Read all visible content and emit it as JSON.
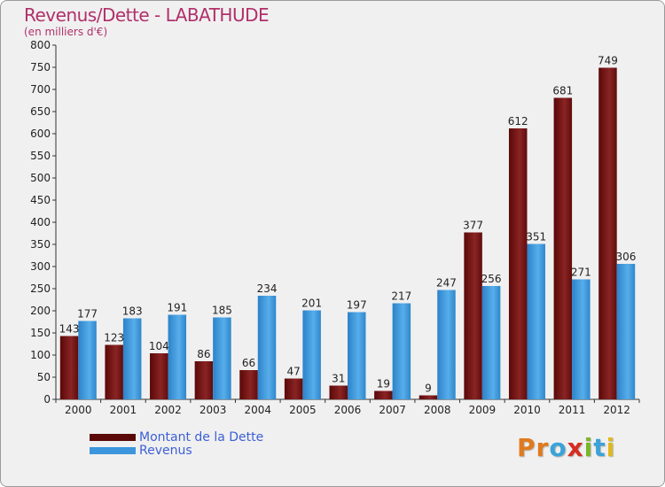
{
  "chart_data": {
    "type": "bar",
    "title": "Revenus/Dette - LABATHUDE",
    "subtitle": "(en milliers d'€)",
    "categories": [
      "2000",
      "2001",
      "2002",
      "2003",
      "2004",
      "2005",
      "2006",
      "2007",
      "2008",
      "2009",
      "2010",
      "2011",
      "2012"
    ],
    "series": [
      {
        "name": "Montant de la Dette",
        "color": "#7a1515",
        "values": [
          143,
          123,
          104,
          86,
          66,
          47,
          31,
          19,
          9,
          377,
          612,
          681,
          749
        ]
      },
      {
        "name": "Revenus",
        "color": "#3b96dd",
        "values": [
          177,
          183,
          191,
          185,
          234,
          201,
          197,
          217,
          247,
          256,
          351,
          271,
          306
        ]
      }
    ],
    "ylim": [
      0,
      800
    ],
    "yticks": [
      0,
      50,
      100,
      150,
      200,
      250,
      300,
      350,
      400,
      450,
      500,
      550,
      600,
      650,
      700,
      750,
      800
    ],
    "grid": false,
    "legend_position": "bottom-left"
  },
  "brand": {
    "letters": [
      {
        "char": "P",
        "color": "#e07a1f"
      },
      {
        "char": "r",
        "color": "#e07a1f"
      },
      {
        "char": "o",
        "color": "#3aa3d8"
      },
      {
        "char": "x",
        "color": "#d62d20"
      },
      {
        "char": "i",
        "color": "#7bb52a"
      },
      {
        "char": "t",
        "color": "#3aa3d8"
      },
      {
        "char": "i",
        "color": "#e0b91f"
      }
    ]
  }
}
